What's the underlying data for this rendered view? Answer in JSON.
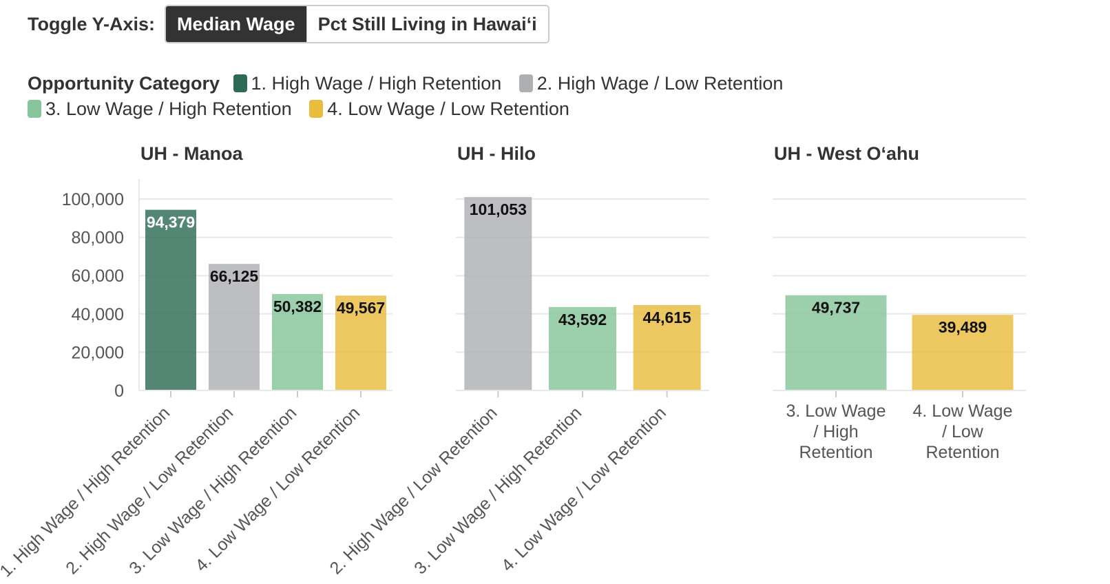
{
  "toggle": {
    "label": "Toggle Y-Axis:",
    "options": [
      "Median Wage",
      "Pct Still Living in Hawai‘i"
    ],
    "selected": "Median Wage"
  },
  "legend": {
    "title": "Opportunity Category",
    "items": [
      {
        "label": "1. High Wage / High Retention",
        "color": "#2e6b55"
      },
      {
        "label": "2. High Wage / Low Retention",
        "color": "#adb0b3"
      },
      {
        "label": "3. Low Wage / High Retention",
        "color": "#86c59a"
      },
      {
        "label": "4. Low Wage / Low Retention",
        "color": "#e9bc3e"
      }
    ]
  },
  "chart_data": [
    {
      "type": "bar",
      "title": "UH - Manoa",
      "categories": [
        "1. High Wage / High Retention",
        "2. High Wage / Low Retention",
        "3. Low Wage / High Retention",
        "4. Low Wage / Low Retention"
      ],
      "values": [
        94379,
        66125,
        50382,
        49567
      ],
      "value_labels": [
        "94,379",
        "66,125",
        "50,382",
        "49,567"
      ],
      "colors": [
        "#2e6b55",
        "#adb0b3",
        "#86c59a",
        "#e9bc3e"
      ],
      "y_ticks": [
        "100,000",
        "80,000",
        "60,000",
        "40,000",
        "20,000",
        "0"
      ],
      "y_tick_values": [
        100000,
        80000,
        60000,
        40000,
        20000,
        0
      ],
      "ylim": [
        0,
        102000
      ],
      "category_label_rotation": "rotated",
      "grid": true
    },
    {
      "type": "bar",
      "title": "UH - Hilo",
      "categories": [
        "2. High Wage / Low Retention",
        "3. Low Wage / High Retention",
        "4. Low Wage / Low Retention"
      ],
      "values": [
        101053,
        43592,
        44615
      ],
      "value_labels": [
        "101,053",
        "43,592",
        "44,615"
      ],
      "colors": [
        "#adb0b3",
        "#86c59a",
        "#e9bc3e"
      ],
      "ylim": [
        0,
        102000
      ],
      "category_label_rotation": "rotated",
      "grid": true
    },
    {
      "type": "bar",
      "title": "UH - West O‘ahu",
      "categories": [
        "3. Low Wage / High Retention",
        "4. Low Wage / Low Retention"
      ],
      "values": [
        49737,
        39489
      ],
      "value_labels": [
        "49,737",
        "39,489"
      ],
      "colors": [
        "#86c59a",
        "#e9bc3e"
      ],
      "ylim": [
        0,
        102000
      ],
      "category_label_rotation": "horizontal-wrapped",
      "grid": true
    }
  ]
}
